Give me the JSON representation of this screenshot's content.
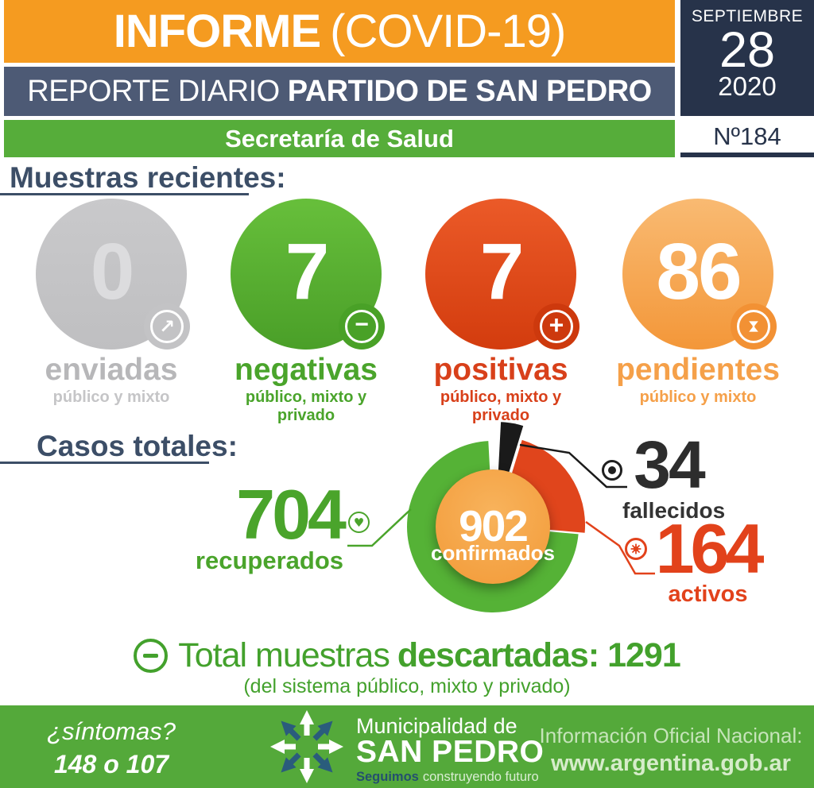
{
  "header": {
    "title_bold": "INFORME",
    "title_light": "(COVID-19)",
    "report_line_light": "REPORTE DIARIO",
    "report_line_bold": "PARTIDO DE SAN PEDRO",
    "department": "Secretaría de Salud",
    "date": {
      "month": "SEPTIEMBRE",
      "day": "28",
      "year": "2020"
    },
    "issue_number": "Nº184"
  },
  "sections": {
    "samples_title": "Muestras recientes:",
    "cases_title": "Casos totales:"
  },
  "samples": [
    {
      "value": "0",
      "label": "enviadas",
      "sublabel": "público y mixto",
      "icon": "arrow-up-right",
      "color": "#c5c5c7"
    },
    {
      "value": "7",
      "label": "negativas",
      "sublabel": "público, mixto y privado",
      "icon": "minus",
      "color": "#56b02f"
    },
    {
      "value": "7",
      "label": "positivas",
      "sublabel": "público, mixto y privado",
      "icon": "plus",
      "color": "#dd4517"
    },
    {
      "value": "86",
      "label": "pendientes",
      "sublabel": "público y mixto",
      "icon": "hourglass",
      "color": "#f6a44e"
    }
  ],
  "chart_data": {
    "type": "pie",
    "title": "Casos totales",
    "donut": true,
    "center": {
      "value": 902,
      "label": "confirmados",
      "color": "#f5a445"
    },
    "slices": [
      {
        "label": "fallecidos",
        "value": 34,
        "color": "#1a1a1a"
      },
      {
        "label": "activos",
        "value": 164,
        "color": "#e0451c"
      },
      {
        "label": "recuperados",
        "value": 704,
        "color": "#55b236"
      }
    ],
    "total": 902,
    "legend_position": "callouts"
  },
  "discarded": {
    "light": "Total muestras",
    "bold": "descartadas: 1291",
    "note": "(del sistema público, mixto y privado)"
  },
  "footer": {
    "symptoms_question": "¿síntomas?",
    "symptoms_numbers": "148 o 107",
    "logo_line1": "Municipalidad de",
    "logo_line2": "SAN PEDRO",
    "tagline_bold": "Seguimos",
    "tagline_rest": "construyendo futuro",
    "info_label": "Información Oficial Nacional:",
    "info_url": "www.argentina.gob.ar"
  },
  "colors": {
    "banner_orange": "#f59b20",
    "banner_slate": "#4d5a75",
    "banner_green": "#56ad3a",
    "date_navy": "#27334a",
    "heading_navy": "#3c4e67",
    "footer_green": "#54a93a",
    "discard_green": "#43a12c",
    "active_red": "#e2421b",
    "recovered_green": "#4aa42b"
  }
}
